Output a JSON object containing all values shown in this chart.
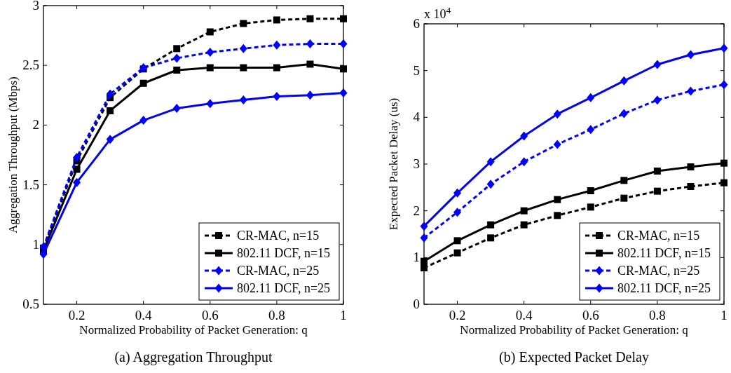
{
  "chart_data": [
    {
      "type": "line",
      "xlabel": "Normalized Probability of Packet Generation: q",
      "ylabel": "Aggregation Throughput (Mbps)",
      "x": [
        0.1,
        0.2,
        0.3,
        0.4,
        0.5,
        0.6,
        0.7,
        0.8,
        0.9,
        1
      ],
      "xlim": [
        0.1,
        1
      ],
      "xticks": [
        0.2,
        0.4,
        0.6,
        0.8,
        1
      ],
      "ylim": [
        0.5,
        3
      ],
      "yticks": [
        0.5,
        1,
        1.5,
        2,
        2.5,
        3
      ],
      "legend": "bottom right",
      "annotations": [
        "(a)  Aggregation Throughput"
      ],
      "series": [
        {
          "name": "CR-MAC, n=15",
          "color": "#000000",
          "line_style": "dashed",
          "marker": "square",
          "values": [
            0.97,
            1.7,
            2.23,
            2.47,
            2.64,
            2.78,
            2.85,
            2.88,
            2.89,
            2.89
          ]
        },
        {
          "name": "802.11 DCF, n=15",
          "color": "#000000",
          "line_style": "solid",
          "marker": "square",
          "values": [
            0.95,
            1.63,
            2.12,
            2.35,
            2.46,
            2.48,
            2.48,
            2.48,
            2.51,
            2.47
          ]
        },
        {
          "name": "CR-MAC, n=25",
          "color": "#0000ff",
          "line_style": "dashed",
          "marker": "diamond",
          "values": [
            0.98,
            1.73,
            2.26,
            2.48,
            2.56,
            2.61,
            2.64,
            2.67,
            2.68,
            2.68
          ]
        },
        {
          "name": "802.11 DCF, n=25",
          "color": "#0000ff",
          "line_style": "solid",
          "marker": "diamond",
          "values": [
            0.92,
            1.52,
            1.88,
            2.04,
            2.14,
            2.18,
            2.21,
            2.24,
            2.25,
            2.27
          ]
        }
      ]
    },
    {
      "type": "line",
      "xlabel": "Normalized Probability of Packet Generation: q",
      "ylabel": "Expected Packet Delay (us)",
      "x": [
        0.1,
        0.2,
        0.3,
        0.4,
        0.5,
        0.6,
        0.7,
        0.8,
        0.9,
        1
      ],
      "xlim": [
        0.1,
        1
      ],
      "xticks": [
        0.2,
        0.4,
        0.6,
        0.8,
        1
      ],
      "ylim": [
        0,
        6
      ],
      "yticks": [
        0,
        1,
        2,
        3,
        4,
        5,
        6
      ],
      "legend": "bottom right",
      "annotations": [
        "x 10$^{4}$",
        "(b) Expected Packet Delay"
      ],
      "series": [
        {
          "name": "CR-MAC, n=15",
          "color": "#000000",
          "line_style": "dashed",
          "marker": "square",
          "values": [
            0.78,
            1.1,
            1.42,
            1.7,
            1.9,
            2.08,
            2.27,
            2.42,
            2.52,
            2.6
          ]
        },
        {
          "name": "802.11 DCF, n=15",
          "color": "#000000",
          "line_style": "solid",
          "marker": "square",
          "values": [
            0.92,
            1.36,
            1.7,
            2.0,
            2.24,
            2.43,
            2.65,
            2.85,
            2.94,
            3.02
          ]
        },
        {
          "name": "CR-MAC, n=25",
          "color": "#0000ff",
          "line_style": "dashed",
          "marker": "diamond",
          "values": [
            1.42,
            1.97,
            2.57,
            3.05,
            3.42,
            3.74,
            4.08,
            4.37,
            4.56,
            4.7
          ]
        },
        {
          "name": "802.11 DCF, n=25",
          "color": "#0000ff",
          "line_style": "solid",
          "marker": "diamond",
          "values": [
            1.67,
            2.38,
            3.05,
            3.6,
            4.07,
            4.42,
            4.78,
            5.13,
            5.34,
            5.48
          ]
        }
      ]
    }
  ]
}
